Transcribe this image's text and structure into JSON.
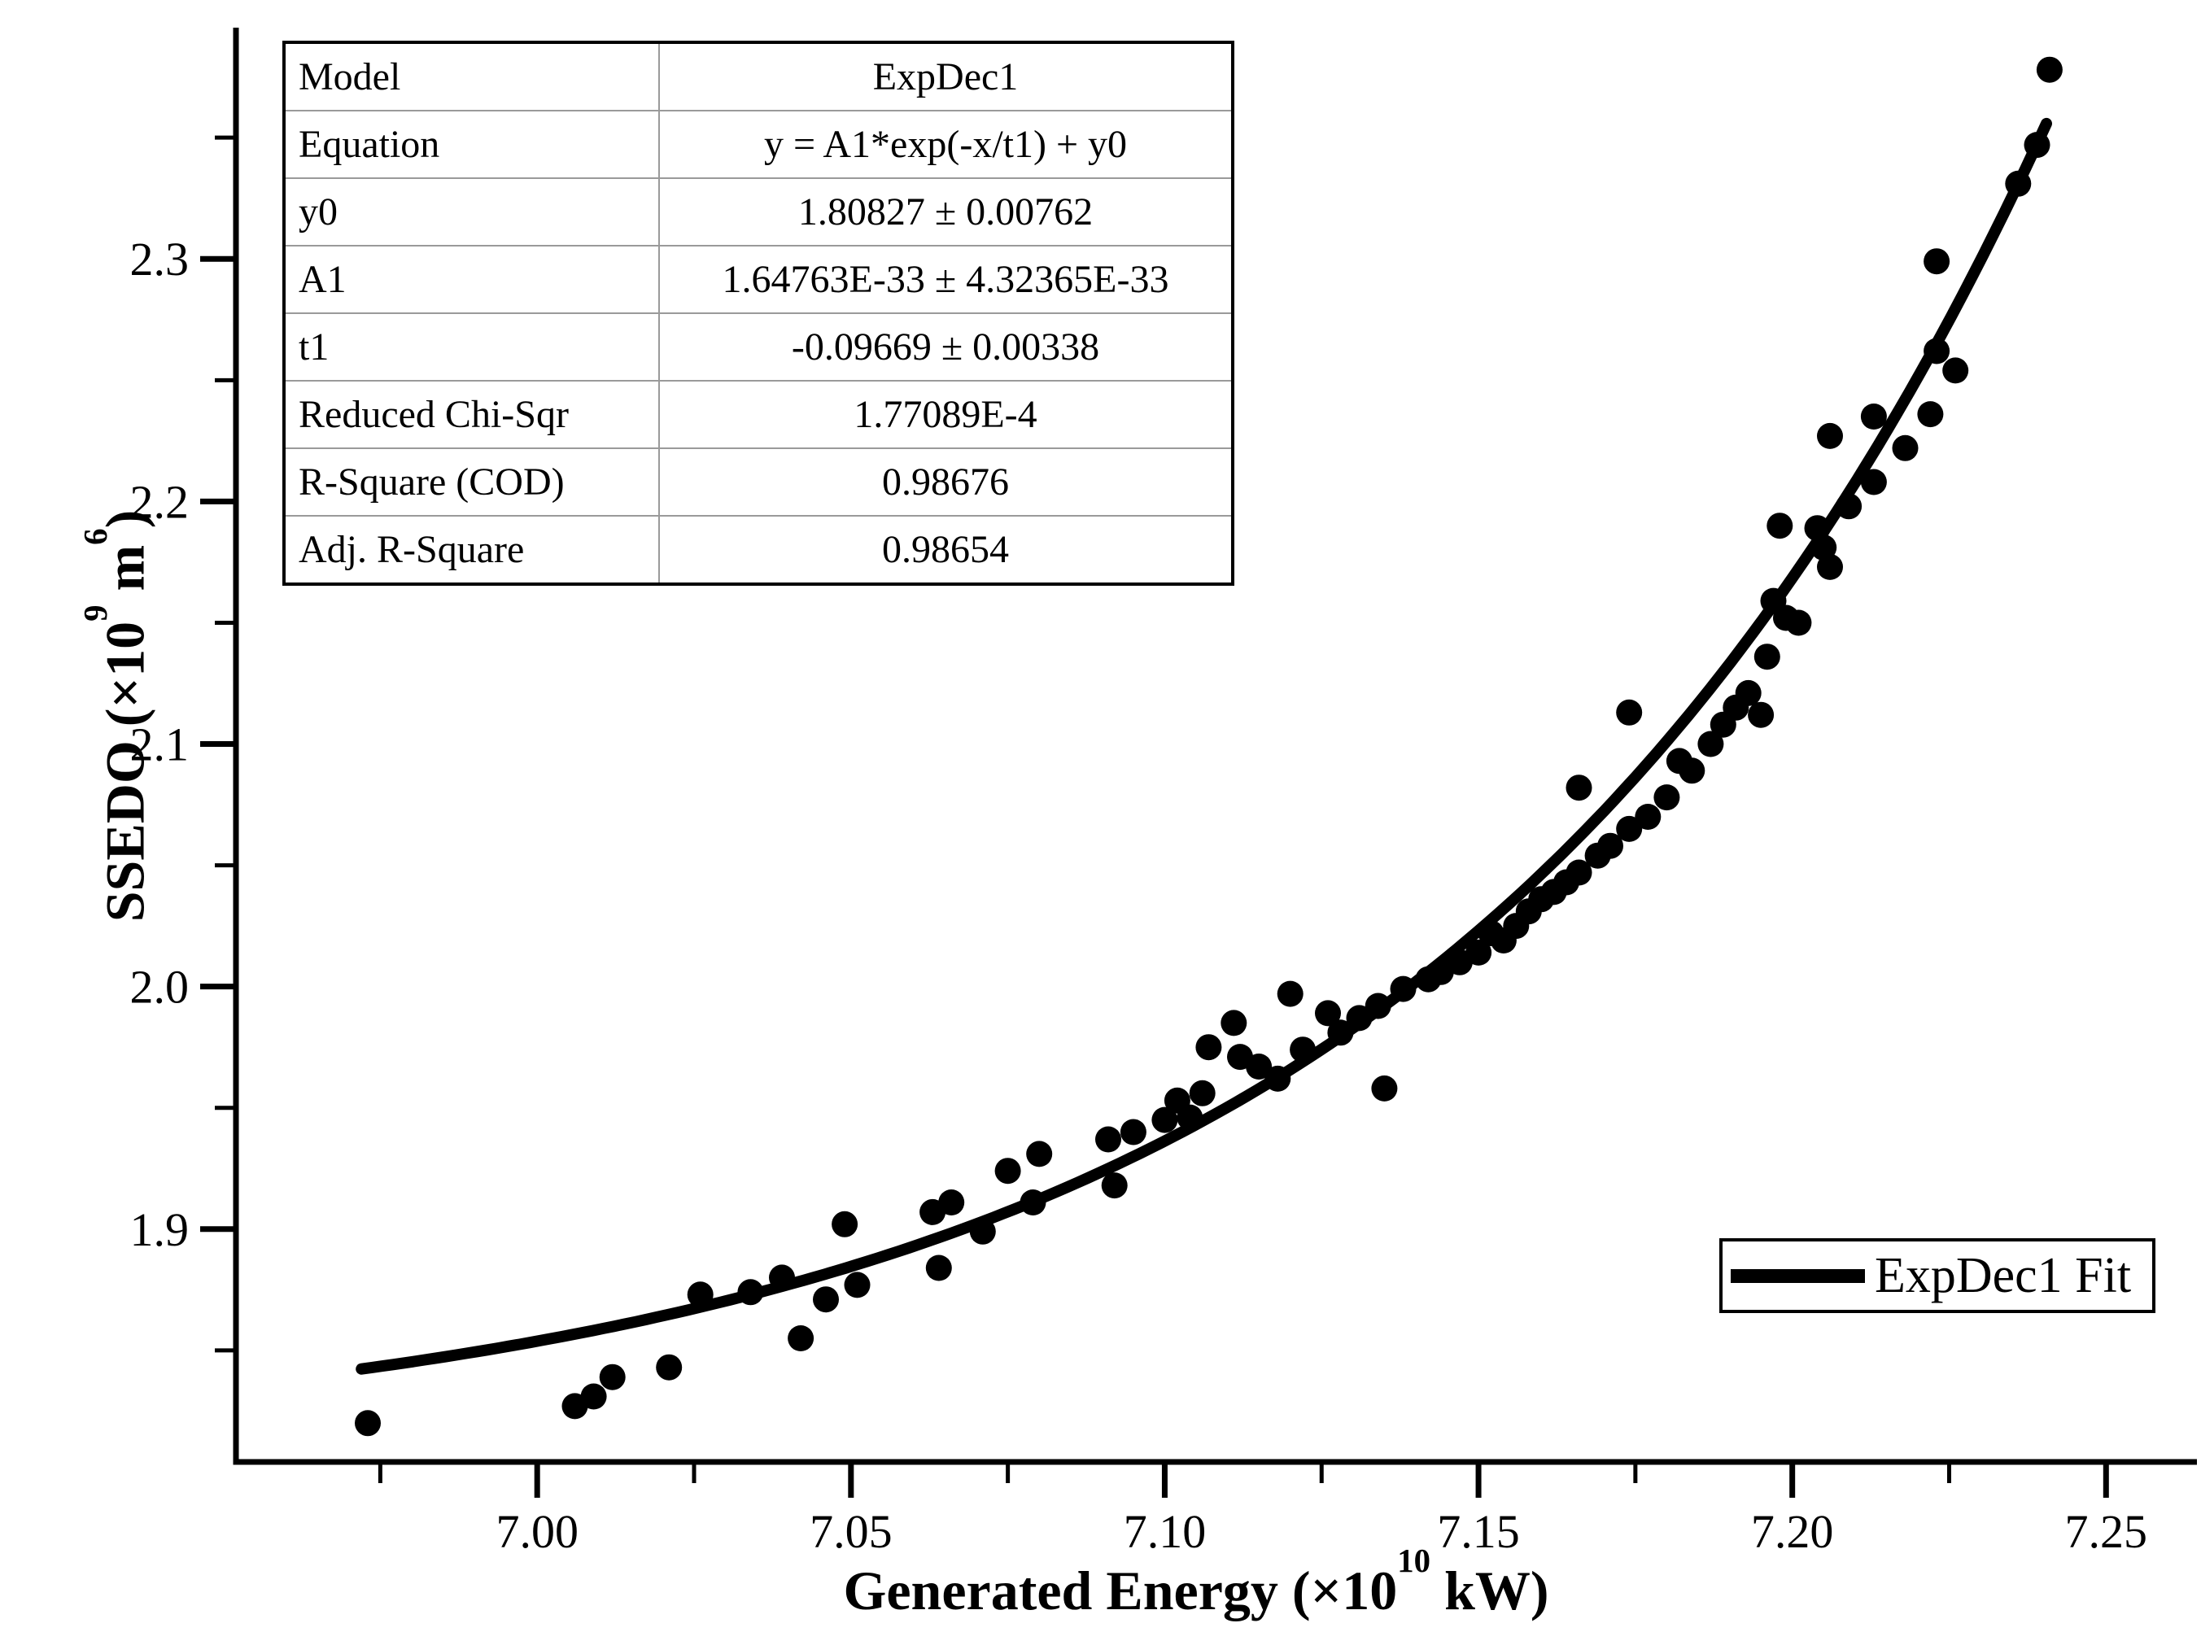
{
  "page": {
    "background": "#ffffff",
    "foreground": "#000000"
  },
  "table": {
    "rows": [
      {
        "label": "Model",
        "value": "ExpDec1"
      },
      {
        "label": "Equation",
        "value": "y = A1*exp(-x/t1) + y0"
      },
      {
        "label": "y0",
        "value": "1.80827 ± 0.00762"
      },
      {
        "label": "A1",
        "value": "1.64763E-33 ± 4.32365E-33"
      },
      {
        "label": "t1",
        "value": "-0.09669 ± 0.00338"
      },
      {
        "label": "Reduced Chi-Sqr",
        "value": "1.77089E-4"
      },
      {
        "label": "R-Square (COD)",
        "value": "0.98676"
      },
      {
        "label": "Adj. R-Square",
        "value": "0.98654"
      }
    ]
  },
  "legend": {
    "label": "ExpDec1 Fit"
  },
  "axes": {
    "x": {
      "title": {
        "prefix": "Generated Energy (×10",
        "exp": "10",
        "suffix": " kW)"
      }
    },
    "y": {
      "title": {
        "prefix": "SSEDO (×10",
        "exp": "9",
        "mid": " m",
        "exp2": "6",
        "suffix": ")"
      }
    }
  },
  "chart_data": {
    "type": "scatter",
    "title": "",
    "xlabel": "Generated Energy (×10^10 kW)",
    "ylabel": "SSEDO (×10^9 m^6)",
    "xlim": [
      6.952,
      7.258
    ],
    "ylim": [
      1.804,
      2.394
    ],
    "grid": false,
    "legend_position": "bottom-right",
    "x_ticks": {
      "major": [
        7.0,
        7.05,
        7.1,
        7.15,
        7.2,
        7.25
      ],
      "labels": [
        "7.00",
        "7.05",
        "7.10",
        "7.15",
        "7.20",
        "7.25"
      ],
      "minor": [
        6.975,
        7.025,
        7.075,
        7.125,
        7.175,
        7.225
      ]
    },
    "y_ticks": {
      "major": [
        1.9,
        2.0,
        2.1,
        2.2,
        2.3
      ],
      "labels": [
        "1.9",
        "2.0",
        "2.1",
        "2.2",
        "2.3"
      ],
      "minor": [
        1.85,
        1.95,
        2.05,
        2.15,
        2.25,
        2.35
      ]
    },
    "series": [
      {
        "name": "SSEDO",
        "type": "scatter",
        "marker": "filled-circle",
        "color": "#000000",
        "points": [
          [
            6.973,
            1.82
          ],
          [
            7.006,
            1.827
          ],
          [
            7.009,
            1.831
          ],
          [
            7.012,
            1.839
          ],
          [
            7.021,
            1.843
          ],
          [
            7.026,
            1.873
          ],
          [
            7.034,
            1.874
          ],
          [
            7.039,
            1.88
          ],
          [
            7.042,
            1.855
          ],
          [
            7.046,
            1.871
          ],
          [
            7.049,
            1.902
          ],
          [
            7.051,
            1.877
          ],
          [
            7.063,
            1.907
          ],
          [
            7.064,
            1.884
          ],
          [
            7.066,
            1.911
          ],
          [
            7.071,
            1.899
          ],
          [
            7.075,
            1.924
          ],
          [
            7.079,
            1.911
          ],
          [
            7.08,
            1.931
          ],
          [
            7.091,
            1.937
          ],
          [
            7.092,
            1.918
          ],
          [
            7.095,
            1.94
          ],
          [
            7.1,
            1.945
          ],
          [
            7.102,
            1.953
          ],
          [
            7.104,
            1.946
          ],
          [
            7.106,
            1.956
          ],
          [
            7.107,
            1.975
          ],
          [
            7.111,
            1.985
          ],
          [
            7.112,
            1.971
          ],
          [
            7.115,
            1.967
          ],
          [
            7.118,
            1.962
          ],
          [
            7.12,
            1.997
          ],
          [
            7.122,
            1.974
          ],
          [
            7.126,
            1.989
          ],
          [
            7.128,
            1.981
          ],
          [
            7.131,
            1.987
          ],
          [
            7.134,
            1.992
          ],
          [
            7.135,
            1.958
          ],
          [
            7.138,
            1.999
          ],
          [
            7.142,
            2.003
          ],
          [
            7.144,
            2.006
          ],
          [
            7.147,
            2.01
          ],
          [
            7.15,
            2.014
          ],
          [
            7.152,
            2.022
          ],
          [
            7.154,
            2.019
          ],
          [
            7.156,
            2.025
          ],
          [
            7.158,
            2.031
          ],
          [
            7.16,
            2.036
          ],
          [
            7.162,
            2.039
          ],
          [
            7.164,
            2.043
          ],
          [
            7.166,
            2.047
          ],
          [
            7.166,
            2.082
          ],
          [
            7.169,
            2.054
          ],
          [
            7.171,
            2.058
          ],
          [
            7.174,
            2.113
          ],
          [
            7.174,
            2.065
          ],
          [
            7.177,
            2.07
          ],
          [
            7.18,
            2.078
          ],
          [
            7.182,
            2.093
          ],
          [
            7.184,
            2.089
          ],
          [
            7.187,
            2.1
          ],
          [
            7.189,
            2.108
          ],
          [
            7.191,
            2.115
          ],
          [
            7.193,
            2.121
          ],
          [
            7.195,
            2.112
          ],
          [
            7.196,
            2.136
          ],
          [
            7.197,
            2.159
          ],
          [
            7.198,
            2.19
          ],
          [
            7.199,
            2.152
          ],
          [
            7.201,
            2.15
          ],
          [
            7.204,
            2.189
          ],
          [
            7.205,
            2.181
          ],
          [
            7.206,
            2.173
          ],
          [
            7.206,
            2.227
          ],
          [
            7.209,
            2.198
          ],
          [
            7.213,
            2.208
          ],
          [
            7.213,
            2.235
          ],
          [
            7.218,
            2.222
          ],
          [
            7.222,
            2.236
          ],
          [
            7.223,
            2.299
          ],
          [
            7.223,
            2.262
          ],
          [
            7.226,
            2.254
          ],
          [
            7.236,
            2.331
          ],
          [
            7.239,
            2.347
          ],
          [
            7.241,
            2.378
          ]
        ]
      },
      {
        "name": "ExpDec1 Fit",
        "type": "line",
        "color": "#000000",
        "x_range": [
          6.972,
          7.2405
        ],
        "fit": {
          "model": "ExpDec1",
          "equation": "y = A1*exp(-x/t1) + y0",
          "y0": 1.80827,
          "A1": 1.64763e-33,
          "t1": -0.09669
        }
      }
    ]
  }
}
